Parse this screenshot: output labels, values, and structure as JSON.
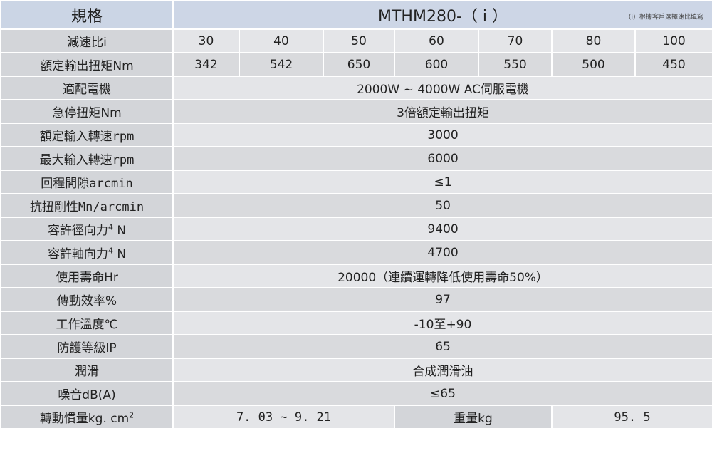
{
  "header": {
    "label": "規格",
    "model": "MTHM280-（ i ）",
    "note": "（i）根據客戶選擇速比填寫"
  },
  "ratio": {
    "label": "減速比i",
    "values": [
      "30",
      "40",
      "50",
      "60",
      "70",
      "80",
      "100"
    ]
  },
  "rated_torque": {
    "label": "額定輸出扭矩Nm",
    "values": [
      "342",
      "542",
      "650",
      "600",
      "550",
      "500",
      "450"
    ]
  },
  "rows": [
    {
      "label": "適配電機",
      "value": "2000W ~ 4000W  AC伺服電機"
    },
    {
      "label": "急停扭矩Nm",
      "value": "3倍額定輸出扭矩"
    },
    {
      "label": "額定輸入轉速rpm",
      "value": "3000"
    },
    {
      "label": "最大輸入轉速rpm",
      "value": "6000"
    },
    {
      "label": "回程間隙arcmin",
      "value": "≤1"
    },
    {
      "label": "抗扭剛性Mn/arcmin",
      "value": "50"
    },
    {
      "label": "容許徑向力",
      "sup": "4",
      "unit": " N",
      "value": "9400"
    },
    {
      "label": "容許軸向力",
      "sup": "4",
      "unit": " N",
      "value": "4700"
    },
    {
      "label": "使用壽命Hr",
      "value": "20000（連續運轉降低使用壽命50%）"
    },
    {
      "label": "傳動效率%",
      "value": "97"
    },
    {
      "label": "工作溫度℃",
      "value": "-10至+90"
    },
    {
      "label": "防護等級IP",
      "value": "65"
    },
    {
      "label": "潤滑",
      "value": "合成潤滑油"
    },
    {
      "label": "噪音dB(A)",
      "value": "≤65"
    }
  ],
  "inertia": {
    "label": "轉動慣量kg. cm",
    "sup": "2",
    "value": "7. 03 ~ 9. 21",
    "weight_label": "重量kg",
    "weight_value": "95. 5"
  }
}
